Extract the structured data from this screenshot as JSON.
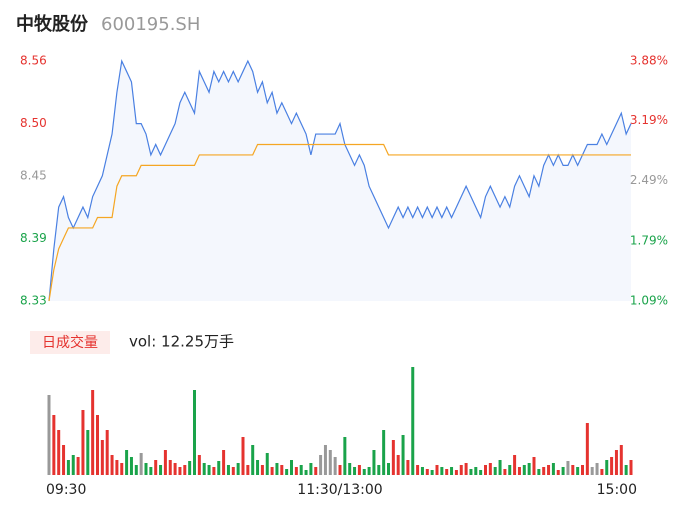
{
  "chart_data": [
    {
      "type": "line",
      "title": "中牧股份",
      "subtitle": "600195.SH",
      "x": [
        0,
        2,
        4,
        6,
        8,
        10,
        12,
        14,
        16,
        18,
        20,
        22,
        24,
        26,
        28,
        30,
        32,
        34,
        36,
        38,
        40,
        42,
        44,
        46,
        48,
        50,
        52,
        54,
        56,
        58,
        60,
        62,
        64,
        66,
        68,
        70,
        72,
        74,
        76,
        78,
        80,
        82,
        84,
        86,
        88,
        90,
        92,
        94,
        96,
        98,
        100,
        102,
        104,
        106,
        108,
        110,
        112,
        114,
        116,
        118,
        120,
        122,
        124,
        126,
        128,
        130,
        132,
        134,
        136,
        138,
        140,
        142,
        144,
        146,
        148,
        150,
        152,
        154,
        156,
        158,
        160,
        162,
        164,
        166,
        168,
        170,
        172,
        174,
        176,
        178,
        180,
        182,
        184,
        186,
        188,
        190,
        192,
        194,
        196,
        198,
        200,
        202,
        204,
        206,
        208,
        210,
        212,
        214,
        216,
        218,
        220,
        222,
        224,
        226,
        228,
        230,
        232,
        234,
        236,
        238,
        240
      ],
      "series": [
        {
          "color": "#4a80e2",
          "values": [
            8.33,
            8.38,
            8.42,
            8.43,
            8.41,
            8.4,
            8.41,
            8.42,
            8.41,
            8.43,
            8.44,
            8.45,
            8.47,
            8.49,
            8.53,
            8.56,
            8.55,
            8.54,
            8.5,
            8.5,
            8.49,
            8.47,
            8.48,
            8.47,
            8.48,
            8.49,
            8.5,
            8.52,
            8.53,
            8.52,
            8.51,
            8.55,
            8.54,
            8.53,
            8.55,
            8.54,
            8.55,
            8.54,
            8.55,
            8.54,
            8.55,
            8.56,
            8.55,
            8.53,
            8.54,
            8.52,
            8.53,
            8.51,
            8.52,
            8.51,
            8.5,
            8.51,
            8.5,
            8.49,
            8.47,
            8.49,
            8.49,
            8.49,
            8.49,
            8.49,
            8.5,
            8.48,
            8.47,
            8.46,
            8.47,
            8.46,
            8.44,
            8.43,
            8.42,
            8.41,
            8.4,
            8.41,
            8.42,
            8.41,
            8.42,
            8.41,
            8.42,
            8.41,
            8.42,
            8.41,
            8.42,
            8.41,
            8.42,
            8.41,
            8.42,
            8.43,
            8.44,
            8.43,
            8.42,
            8.41,
            8.43,
            8.44,
            8.43,
            8.42,
            8.43,
            8.42,
            8.44,
            8.45,
            8.44,
            8.43,
            8.45,
            8.44,
            8.46,
            8.47,
            8.46,
            8.47,
            8.46,
            8.46,
            8.47,
            8.46,
            8.47,
            8.48,
            8.48,
            8.48,
            8.49,
            8.48,
            8.49,
            8.5,
            8.51,
            8.49,
            8.5
          ]
        },
        {
          "color": "#f5a623",
          "values": [
            8.33,
            8.36,
            8.38,
            8.39,
            8.4,
            8.4,
            8.4,
            8.4,
            8.4,
            8.4,
            8.41,
            8.41,
            8.41,
            8.41,
            8.44,
            8.45,
            8.45,
            8.45,
            8.45,
            8.46,
            8.46,
            8.46,
            8.46,
            8.46,
            8.46,
            8.46,
            8.46,
            8.46,
            8.46,
            8.46,
            8.46,
            8.47,
            8.47,
            8.47,
            8.47,
            8.47,
            8.47,
            8.47,
            8.47,
            8.47,
            8.47,
            8.47,
            8.47,
            8.48,
            8.48,
            8.48,
            8.48,
            8.48,
            8.48,
            8.48,
            8.48,
            8.48,
            8.48,
            8.48,
            8.48,
            8.48,
            8.48,
            8.48,
            8.48,
            8.48,
            8.48,
            8.48,
            8.48,
            8.48,
            8.48,
            8.48,
            8.48,
            8.48,
            8.48,
            8.48,
            8.47,
            8.47,
            8.47,
            8.47,
            8.47,
            8.47,
            8.47,
            8.47,
            8.47,
            8.47,
            8.47,
            8.47,
            8.47,
            8.47,
            8.47,
            8.47,
            8.47,
            8.47,
            8.47,
            8.47,
            8.47,
            8.47,
            8.47,
            8.47,
            8.47,
            8.47,
            8.47,
            8.47,
            8.47,
            8.47,
            8.47,
            8.47,
            8.47,
            8.47,
            8.47,
            8.47,
            8.47,
            8.47,
            8.47,
            8.47,
            8.47,
            8.47,
            8.47,
            8.47,
            8.47,
            8.47,
            8.47,
            8.47,
            8.47,
            8.47,
            8.47
          ]
        }
      ],
      "xlim": [
        0,
        240
      ],
      "ylim": [
        8.33,
        8.56
      ],
      "yticks": [
        8.33,
        8.39,
        8.45,
        {
          "value": 8.5,
          "label": "8.50"
        },
        8.56
      ],
      "y2lim": [
        1.09,
        3.88
      ],
      "y2ticks": [
        {
          "value": 1.09,
          "label": "1.09%"
        },
        {
          "value": 1.79,
          "label": "1.79%"
        },
        {
          "value": 2.49,
          "label": "2.49%"
        },
        {
          "value": 3.19,
          "label": "3.19%"
        },
        {
          "value": 3.88,
          "label": "3.88%"
        }
      ],
      "up_color": "#e5332f",
      "down_color": "#1aa34a",
      "flat_color": "#999999",
      "area_color": "#f4f7fd"
    },
    {
      "type": "bar",
      "title": "日成交量",
      "annotation": "vol: 12.25万手",
      "values": [
        80,
        60,
        45,
        30,
        15,
        20,
        18,
        65,
        45,
        85,
        60,
        35,
        45,
        20,
        15,
        12,
        25,
        18,
        10,
        22,
        12,
        8,
        15,
        10,
        25,
        15,
        12,
        8,
        10,
        14,
        85,
        20,
        12,
        10,
        8,
        14,
        25,
        10,
        8,
        12,
        38,
        10,
        30,
        15,
        10,
        22,
        8,
        12,
        10,
        6,
        15,
        8,
        10,
        5,
        12,
        8,
        20,
        30,
        25,
        18,
        10,
        38,
        12,
        8,
        10,
        6,
        8,
        25,
        10,
        45,
        12,
        35,
        20,
        40,
        15,
        108,
        10,
        8,
        6,
        5,
        10,
        8,
        6,
        8,
        5,
        10,
        12,
        6,
        8,
        5,
        10,
        12,
        8,
        15,
        6,
        10,
        20,
        8,
        10,
        12,
        18,
        6,
        8,
        10,
        12,
        5,
        8,
        14,
        10,
        8,
        10,
        52,
        8,
        12,
        6,
        15,
        18,
        25,
        30,
        10,
        15
      ],
      "xlim": [
        0,
        240
      ],
      "xticks": [
        {
          "value": 0,
          "label": "09:30"
        },
        {
          "value": 120,
          "label": "11:30/13:00"
        },
        {
          "value": 240,
          "label": "15:00"
        }
      ]
    }
  ]
}
